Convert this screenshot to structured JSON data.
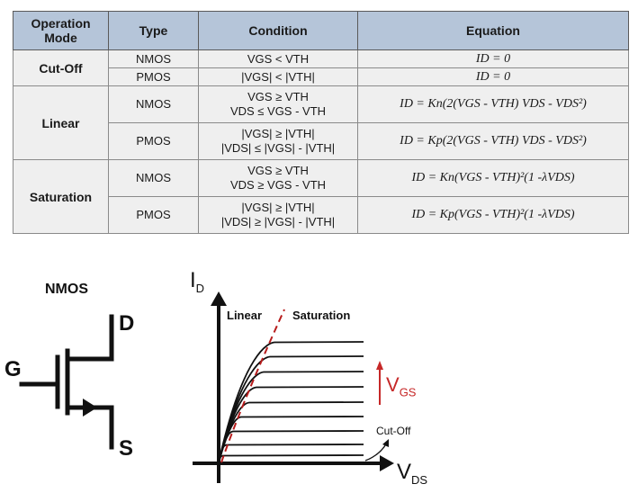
{
  "table": {
    "headers": {
      "mode": "Operation\nMode",
      "type": "Type",
      "condition": "Condition",
      "equation": "Equation"
    },
    "modes": {
      "cutoff": "Cut-Off",
      "linear": "Linear",
      "saturation": "Saturation"
    },
    "rows": [
      {
        "type": "NMOS",
        "cond1": "VGS < VTH",
        "cond2": "",
        "equation": "ID = 0"
      },
      {
        "type": "PMOS",
        "cond1": "|VGS| < |VTH|",
        "cond2": "",
        "equation": "ID = 0"
      },
      {
        "type": "NMOS",
        "cond1": "VGS ≥ VTH",
        "cond2": "VDS ≤ VGS - VTH",
        "equation": "ID = Kn(2(VGS - VTH) VDS - VDS²)"
      },
      {
        "type": "PMOS",
        "cond1": "|VGS| ≥ |VTH|",
        "cond2": "|VDS| ≤ |VGS| - |VTH|",
        "equation": "ID = Kp(2(VGS - VTH) VDS - VDS²)"
      },
      {
        "type": "NMOS",
        "cond1": "VGS ≥ VTH",
        "cond2": "VDS ≥ VGS - VTH",
        "equation": "ID = Kn(VGS - VTH)²(1 -λVDS)"
      },
      {
        "type": "PMOS",
        "cond1": "|VGS| ≥ |VTH|",
        "cond2": "|VDS| ≥ |VGS| - |VTH|",
        "equation": "ID = Kp(VGS - VTH)²(1 -λVDS)"
      }
    ]
  },
  "symbol": {
    "title": "NMOS",
    "gate": "G",
    "drain": "D",
    "source": "S"
  },
  "graph": {
    "y_axis": "I",
    "y_sub": "D",
    "x_axis": "V",
    "x_sub": "DS",
    "region_linear": "Linear",
    "region_saturation": "Saturation",
    "vgs_main": "V",
    "vgs_sub": "GS",
    "cutoff": "Cut-Off"
  },
  "colors": {
    "header_bg": "#b5c5d9",
    "cell_bg": "#efefef",
    "accent_red": "#c62828"
  }
}
